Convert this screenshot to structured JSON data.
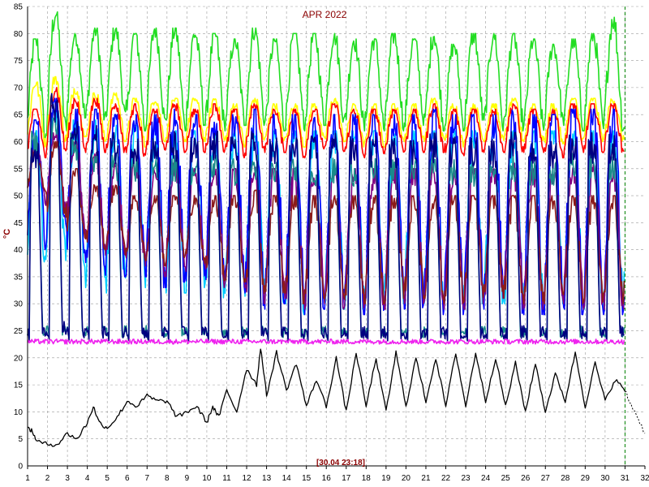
{
  "chart_data": {
    "type": "line",
    "title": "APR 2022",
    "footer": "[30.04 23:18]",
    "ylabel": "°C",
    "xlabel": "",
    "xlim": [
      1,
      32
    ],
    "ylim": [
      0,
      85
    ],
    "x_ticks": [
      "1",
      "2",
      "3",
      "4",
      "5",
      "6",
      "7",
      "8",
      "9",
      "10",
      "11",
      "12",
      "13",
      "14",
      "15",
      "16",
      "17",
      "18",
      "19",
      "20",
      "21",
      "22",
      "23",
      "24",
      "25",
      "26",
      "27",
      "28",
      "29",
      "30",
      "31",
      "32"
    ],
    "y_ticks": [
      "0",
      "5",
      "10",
      "15",
      "20",
      "25",
      "30",
      "35",
      "40",
      "45",
      "50",
      "55",
      "60",
      "65",
      "70",
      "75",
      "80",
      "85"
    ],
    "grid": true,
    "legend": "none",
    "cursor_x": 31,
    "series": [
      {
        "color": "#22dd22",
        "style": "daily-cycle",
        "peak": [
          79,
          84,
          80,
          81,
          81,
          80,
          81,
          81,
          80,
          80,
          79,
          81,
          79,
          80,
          80,
          80,
          79,
          79,
          80,
          79,
          80,
          78,
          80,
          80,
          80,
          79,
          78,
          79,
          80,
          83
        ],
        "trough": [
          60,
          62,
          64,
          63,
          64,
          62,
          63,
          62,
          63,
          62,
          63,
          63,
          62,
          62,
          63,
          63,
          62,
          62,
          62,
          63,
          62,
          62,
          63,
          62,
          62,
          62,
          63,
          62,
          62,
          62
        ]
      },
      {
        "color": "#ffff00",
        "style": "daily-cycle",
        "peak": [
          71,
          72,
          70,
          69,
          69,
          68,
          68,
          68,
          68,
          68,
          67,
          68,
          67,
          67,
          67,
          68,
          67,
          67,
          67,
          67,
          68,
          67,
          67,
          67,
          68,
          67,
          67,
          68,
          68,
          68
        ],
        "trough": [
          59,
          60,
          60,
          60,
          60,
          59,
          60,
          60,
          60,
          60,
          59,
          60,
          60,
          59,
          60,
          60,
          59,
          59,
          60,
          60,
          60,
          59,
          60,
          60,
          60,
          60,
          59,
          60,
          60,
          60
        ]
      },
      {
        "color": "#ff0000",
        "style": "daily-cycle",
        "peak": [
          66,
          70,
          68,
          68,
          67,
          67,
          66,
          67,
          66,
          67,
          66,
          67,
          66,
          66,
          66,
          67,
          66,
          66,
          66,
          66,
          67,
          66,
          66,
          66,
          67,
          66,
          66,
          67,
          67,
          67
        ],
        "trough": [
          57,
          58,
          58,
          58,
          58,
          57,
          58,
          58,
          58,
          58,
          57,
          58,
          58,
          57,
          58,
          58,
          57,
          57,
          58,
          58,
          58,
          57,
          58,
          58,
          58,
          58,
          57,
          58,
          58,
          58
        ]
      },
      {
        "color": "#00ccff",
        "style": "daily-cycle",
        "peak": [
          62,
          66,
          64,
          64,
          63,
          63,
          62,
          62,
          62,
          62,
          62,
          63,
          62,
          62,
          62,
          62,
          62,
          62,
          62,
          62,
          62,
          62,
          62,
          62,
          62,
          62,
          62,
          62,
          62,
          62
        ],
        "trough": [
          35,
          38,
          33,
          32,
          33,
          33,
          32,
          32,
          33,
          31,
          31,
          30,
          30,
          28,
          30,
          29,
          29,
          29,
          30,
          30,
          29,
          29,
          30,
          30,
          29,
          29,
          30,
          29,
          29,
          29
        ]
      },
      {
        "color": "#0000ff",
        "style": "daily-cycle",
        "peak": [
          64,
          68,
          66,
          66,
          65,
          65,
          65,
          66,
          65,
          65,
          65,
          66,
          65,
          65,
          65,
          65,
          65,
          65,
          65,
          65,
          66,
          65,
          65,
          65,
          66,
          65,
          65,
          66,
          66,
          66
        ],
        "trough": [
          40,
          44,
          37,
          34,
          35,
          35,
          33,
          34,
          34,
          32,
          32,
          29,
          30,
          28,
          29,
          28,
          28,
          28,
          29,
          29,
          28,
          28,
          29,
          29,
          28,
          28,
          29,
          28,
          28,
          28
        ]
      },
      {
        "color": "#800080",
        "style": "daily-cycle",
        "peak": [
          60,
          62,
          60,
          58,
          56,
          56,
          55,
          56,
          55,
          56,
          55,
          56,
          55,
          55,
          55,
          55,
          55,
          55,
          55,
          55,
          56,
          55,
          55,
          55,
          56,
          55,
          55,
          56,
          56,
          56
        ],
        "trough": [
          48,
          47,
          42,
          39,
          38,
          37,
          35,
          36,
          36,
          33,
          33,
          30,
          31,
          29,
          30,
          29,
          29,
          29,
          30,
          30,
          29,
          29,
          30,
          30,
          29,
          29,
          30,
          29,
          29,
          29
        ]
      },
      {
        "color": "#8b1a1a",
        "style": "daily-cycle",
        "peak": [
          58,
          60,
          55,
          52,
          52,
          50,
          50,
          50,
          50,
          50,
          50,
          51,
          50,
          50,
          50,
          50,
          50,
          50,
          50,
          50,
          50,
          50,
          50,
          50,
          50,
          50,
          50,
          50,
          50,
          50
        ],
        "trough": [
          50,
          46,
          42,
          40,
          39,
          38,
          37,
          38,
          37,
          34,
          34,
          31,
          32,
          30,
          31,
          30,
          30,
          30,
          31,
          31,
          30,
          30,
          31,
          31,
          30,
          30,
          31,
          30,
          30,
          30
        ]
      },
      {
        "color": "#1a8a8a",
        "style": "daily-cycle-deep",
        "peak": [
          62,
          66,
          62,
          60,
          58,
          58,
          57,
          58,
          57,
          58,
          57,
          58,
          57,
          57,
          57,
          57,
          57,
          57,
          57,
          57,
          58,
          57,
          57,
          57,
          58,
          57,
          57,
          58,
          58,
          58
        ],
        "trough": [
          22,
          22,
          22,
          22,
          22,
          22,
          22,
          22,
          22,
          22,
          22,
          22,
          22,
          22,
          22,
          22,
          22,
          22,
          22,
          22,
          22,
          22,
          22,
          22,
          22,
          22,
          22,
          22,
          22,
          22
        ]
      },
      {
        "color": "#000080",
        "style": "daily-cycle-deep",
        "peak": [
          60,
          69,
          64,
          63,
          62,
          62,
          61,
          62,
          61,
          62,
          61,
          62,
          61,
          61,
          61,
          62,
          61,
          61,
          61,
          61,
          62,
          61,
          61,
          61,
          62,
          61,
          61,
          62,
          62,
          62
        ],
        "trough": [
          21.5,
          21.5,
          21.5,
          21.5,
          21.5,
          21.5,
          21.5,
          21.5,
          21.5,
          21.5,
          21.5,
          21.5,
          21.5,
          21.5,
          21.5,
          21.5,
          21.5,
          21.5,
          21.5,
          21.5,
          21.5,
          21.5,
          21.5,
          21.5,
          21.5,
          21.5,
          21.5,
          21.5,
          21.5,
          21.5
        ]
      },
      {
        "color": "#ee22ee",
        "style": "flat",
        "peak": [
          23.5,
          23.5,
          23.5,
          23.5,
          23.5,
          23.5,
          23.5,
          23.5,
          23.5,
          23.5,
          23.5,
          23.5,
          23.5,
          23.5,
          23.5,
          23.5,
          23.5,
          23.5,
          23.5,
          23.5,
          23.5,
          23.5,
          23.5,
          23.5,
          23.5,
          23.5,
          23.5,
          23.5,
          23.5,
          23.5
        ],
        "trough": [
          22.5,
          22.5,
          22.5,
          22.5,
          22.5,
          22.5,
          22.5,
          22.5,
          22.5,
          22.5,
          22.5,
          22.5,
          22.5,
          22.5,
          22.5,
          22.5,
          22.5,
          22.5,
          22.5,
          22.5,
          22.5,
          22.5,
          22.5,
          22.5,
          22.5,
          22.5,
          22.5,
          22.5,
          22.5,
          22.5
        ]
      },
      {
        "color": "#000000",
        "style": "outdoor",
        "points": [
          [
            1,
            7
          ],
          [
            1.2,
            6.5
          ],
          [
            1.5,
            4.5
          ],
          [
            2,
            4
          ],
          [
            2.5,
            4
          ],
          [
            3,
            6
          ],
          [
            3.5,
            5
          ],
          [
            4,
            8
          ],
          [
            4.3,
            11
          ],
          [
            4.6,
            8
          ],
          [
            5,
            7
          ],
          [
            5.5,
            9
          ],
          [
            6,
            12
          ],
          [
            6.5,
            11
          ],
          [
            7,
            13
          ],
          [
            7.5,
            12
          ],
          [
            8,
            12
          ],
          [
            8.5,
            9
          ],
          [
            9,
            10
          ],
          [
            9.5,
            11
          ],
          [
            10,
            8
          ],
          [
            10.3,
            11
          ],
          [
            10.6,
            9
          ],
          [
            11,
            14
          ],
          [
            11.5,
            10
          ],
          [
            12,
            18
          ],
          [
            12.5,
            15
          ],
          [
            12.7,
            22
          ],
          [
            13,
            13
          ],
          [
            13.5,
            21
          ],
          [
            14,
            14
          ],
          [
            14.5,
            19
          ],
          [
            15,
            11
          ],
          [
            15.5,
            16
          ],
          [
            16,
            11
          ],
          [
            16.5,
            20
          ],
          [
            17,
            10
          ],
          [
            17.5,
            21
          ],
          [
            18,
            11
          ],
          [
            18.5,
            20
          ],
          [
            19,
            10
          ],
          [
            19.5,
            21
          ],
          [
            20,
            11
          ],
          [
            20.5,
            20
          ],
          [
            21,
            12
          ],
          [
            21.5,
            20
          ],
          [
            22,
            11
          ],
          [
            22.5,
            21
          ],
          [
            23,
            11
          ],
          [
            23.5,
            21
          ],
          [
            24,
            12
          ],
          [
            24.5,
            20
          ],
          [
            25,
            11
          ],
          [
            25.5,
            19
          ],
          [
            26,
            10
          ],
          [
            26.5,
            19
          ],
          [
            27,
            10
          ],
          [
            27.5,
            17
          ],
          [
            28,
            12
          ],
          [
            28.5,
            21
          ],
          [
            29,
            11
          ],
          [
            29.5,
            19
          ],
          [
            30,
            12
          ],
          [
            30.5,
            16
          ],
          [
            31,
            14
          ],
          [
            31.2,
            12
          ],
          [
            31.5,
            10
          ],
          [
            32,
            6
          ]
        ]
      }
    ]
  }
}
